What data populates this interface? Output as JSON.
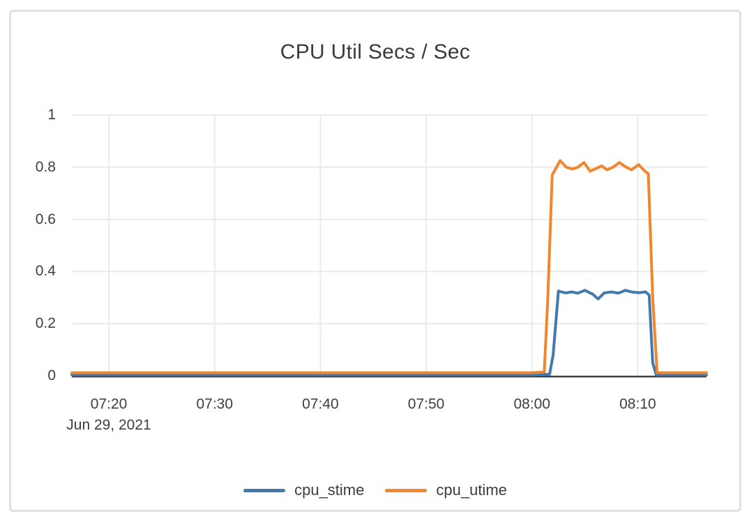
{
  "chart": {
    "title": "CPU Util Secs / Sec",
    "date_label": "Jun 29, 2021"
  },
  "colors": {
    "cpu_stime": "#4379ab",
    "cpu_utime": "#f0862d",
    "grid": "#eaeaea",
    "zero_line": "#3f3f3f",
    "tick_text": "#3e3e3e",
    "card_border": "#e0e0e0"
  },
  "chart_data": {
    "type": "line",
    "title": "CPU Util Secs / Sec",
    "xlabel": "",
    "ylabel": "",
    "date": "Jun 29, 2021",
    "x_range": [
      "07:16:30",
      "08:16:30"
    ],
    "ylim": [
      0,
      1
    ],
    "x_ticks": [
      "07:20",
      "07:30",
      "07:40",
      "07:50",
      "08:00",
      "08:10"
    ],
    "y_ticks": [
      1,
      0.8,
      0.6,
      0.4,
      0.2,
      0
    ],
    "grid": true,
    "legend_position": "bottom",
    "series": [
      {
        "name": "cpu_stime",
        "color": "#4379ab",
        "points": [
          [
            "07:16:30",
            0.004
          ],
          [
            "07:20:00",
            0.004
          ],
          [
            "07:24:00",
            0.004
          ],
          [
            "07:28:00",
            0.004
          ],
          [
            "07:32:00",
            0.004
          ],
          [
            "07:36:00",
            0.004
          ],
          [
            "07:40:00",
            0.004
          ],
          [
            "07:44:00",
            0.004
          ],
          [
            "07:48:00",
            0.004
          ],
          [
            "07:52:00",
            0.004
          ],
          [
            "07:56:00",
            0.004
          ],
          [
            "08:00:00",
            0.004
          ],
          [
            "08:01:40",
            0.006
          ],
          [
            "08:02:00",
            0.08
          ],
          [
            "08:02:30",
            0.325
          ],
          [
            "08:03:10",
            0.318
          ],
          [
            "08:03:45",
            0.322
          ],
          [
            "08:04:20",
            0.317
          ],
          [
            "08:05:00",
            0.328
          ],
          [
            "08:05:45",
            0.313
          ],
          [
            "08:06:15",
            0.295
          ],
          [
            "08:06:50",
            0.318
          ],
          [
            "08:07:30",
            0.322
          ],
          [
            "08:08:10",
            0.317
          ],
          [
            "08:08:50",
            0.328
          ],
          [
            "08:09:30",
            0.321
          ],
          [
            "08:10:10",
            0.319
          ],
          [
            "08:10:45",
            0.322
          ],
          [
            "08:11:05",
            0.31
          ],
          [
            "08:11:25",
            0.05
          ],
          [
            "08:11:45",
            0.004
          ],
          [
            "08:14:00",
            0.004
          ],
          [
            "08:16:30",
            0.004
          ]
        ]
      },
      {
        "name": "cpu_utime",
        "color": "#f0862d",
        "points": [
          [
            "07:16:30",
            0.012
          ],
          [
            "07:20:00",
            0.012
          ],
          [
            "07:24:00",
            0.012
          ],
          [
            "07:28:00",
            0.012
          ],
          [
            "07:32:00",
            0.012
          ],
          [
            "07:36:00",
            0.012
          ],
          [
            "07:40:00",
            0.012
          ],
          [
            "07:44:00",
            0.012
          ],
          [
            "07:48:00",
            0.012
          ],
          [
            "07:52:00",
            0.012
          ],
          [
            "07:56:00",
            0.012
          ],
          [
            "08:00:00",
            0.012
          ],
          [
            "08:01:10",
            0.015
          ],
          [
            "08:01:30",
            0.3
          ],
          [
            "08:01:55",
            0.77
          ],
          [
            "08:02:40",
            0.825
          ],
          [
            "08:03:15",
            0.8
          ],
          [
            "08:03:50",
            0.793
          ],
          [
            "08:04:20",
            0.8
          ],
          [
            "08:04:55",
            0.818
          ],
          [
            "08:05:30",
            0.785
          ],
          [
            "08:06:05",
            0.795
          ],
          [
            "08:06:35",
            0.805
          ],
          [
            "08:07:05",
            0.79
          ],
          [
            "08:07:40",
            0.8
          ],
          [
            "08:08:15",
            0.818
          ],
          [
            "08:08:55",
            0.8
          ],
          [
            "08:09:25",
            0.79
          ],
          [
            "08:10:05",
            0.81
          ],
          [
            "08:10:40",
            0.785
          ],
          [
            "08:11:00",
            0.775
          ],
          [
            "08:11:25",
            0.3
          ],
          [
            "08:11:50",
            0.012
          ],
          [
            "08:14:00",
            0.012
          ],
          [
            "08:16:30",
            0.012
          ]
        ]
      }
    ]
  }
}
